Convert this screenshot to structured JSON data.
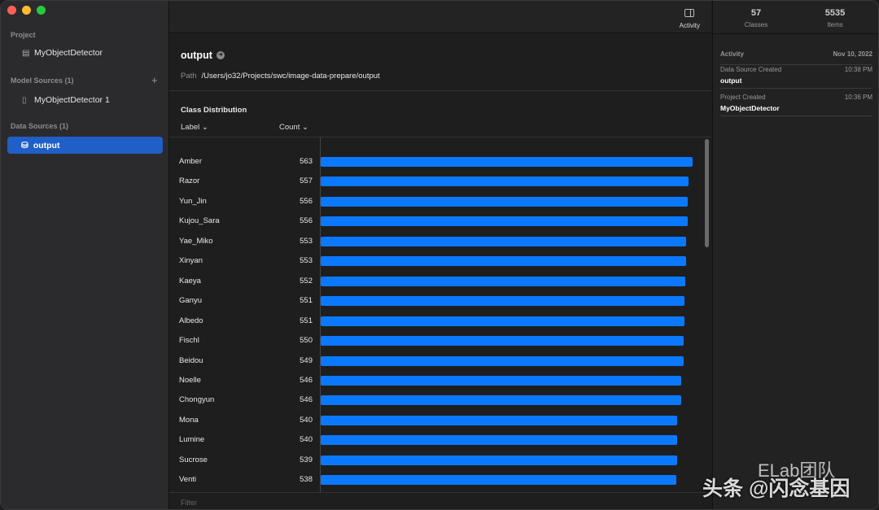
{
  "sidebar": {
    "project_header": "Project",
    "project_name": "MyObjectDetector",
    "model_sources_header": "Model Sources (1)",
    "model_name": "MyObjectDetector 1",
    "data_sources_header": "Data Sources (1)",
    "data_source": "output"
  },
  "toolbar": {
    "activity_label": "Activity"
  },
  "main": {
    "title": "output",
    "path_label": "Path",
    "path": "/Users/jo32/Projects/swc/image-data-prepare/output",
    "section_title": "Class Distribution",
    "col_label": "Label",
    "col_count": "Count",
    "filter_placeholder": "Filter"
  },
  "chart_data": {
    "type": "bar",
    "orientation": "horizontal",
    "xlim": [
      0,
      563
    ],
    "bar_color": "#0a79ff",
    "categories": [
      "Amber",
      "Razor",
      "Yun_Jin",
      "Kujou_Sara",
      "Yae_Miko",
      "Xinyan",
      "Kaeya",
      "Ganyu",
      "Albedo",
      "Fischl",
      "Beidou",
      "Noelle",
      "Chongyun",
      "Mona",
      "Lumine",
      "Sucrose",
      "Venti"
    ],
    "values": [
      563,
      557,
      556,
      556,
      553,
      553,
      552,
      551,
      551,
      550,
      549,
      546,
      546,
      540,
      540,
      539,
      538
    ]
  },
  "right_panel": {
    "classes_count": "57",
    "classes_label": "Classes",
    "items_count": "5535",
    "items_label": "Items",
    "activity_header": "Activity",
    "activity_date": "Nov 10, 2022",
    "events": [
      {
        "type": "Data Source Created",
        "time": "10:38 PM",
        "name": "output"
      },
      {
        "type": "Project Created",
        "time": "10:36 PM",
        "name": "MyObjectDetector"
      }
    ]
  },
  "watermark": {
    "line1": "ELab团队",
    "line2": "头条 @闪念基因"
  }
}
